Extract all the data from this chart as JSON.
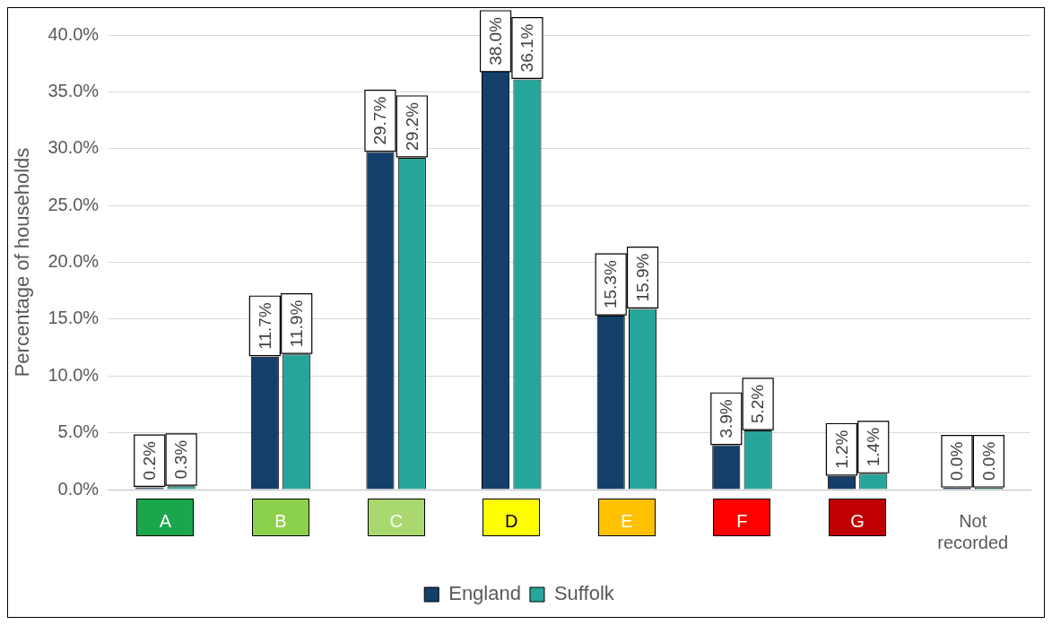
{
  "chart_data": {
    "type": "bar",
    "ylabel": "Percentage of households",
    "categories": [
      "A",
      "B",
      "C",
      "D",
      "E",
      "F",
      "G",
      "Not recorded"
    ],
    "series": [
      {
        "name": "England",
        "color": "#143f6b",
        "values": [
          0.2,
          11.7,
          29.7,
          38.0,
          15.3,
          3.9,
          1.2,
          0.0
        ],
        "value_labels": [
          "0.2%",
          "11.7%",
          "29.7%",
          "38.0%",
          "15.3%",
          "3.9%",
          "1.2%",
          "0.0%"
        ]
      },
      {
        "name": "Suffolk",
        "color": "#26a69a",
        "values": [
          0.3,
          11.9,
          29.2,
          36.1,
          15.9,
          5.2,
          1.4,
          0.0
        ],
        "value_labels": [
          "0.3%",
          "11.9%",
          "29.2%",
          "36.1%",
          "15.9%",
          "5.2%",
          "1.4%",
          "0.0%"
        ]
      }
    ],
    "ylim": [
      0,
      40
    ],
    "yticks": [
      {
        "value": 0,
        "label": "0.0%"
      },
      {
        "value": 5,
        "label": "5.0%"
      },
      {
        "value": 10,
        "label": "10.0%"
      },
      {
        "value": 15,
        "label": "15.0%"
      },
      {
        "value": 20,
        "label": "20.0%"
      },
      {
        "value": 25,
        "label": "25.0%"
      },
      {
        "value": 30,
        "label": "30.0%"
      },
      {
        "value": 35,
        "label": "35.0%"
      },
      {
        "value": 40,
        "label": "40.0%"
      }
    ],
    "grid": "y",
    "legend": "bottom"
  }
}
